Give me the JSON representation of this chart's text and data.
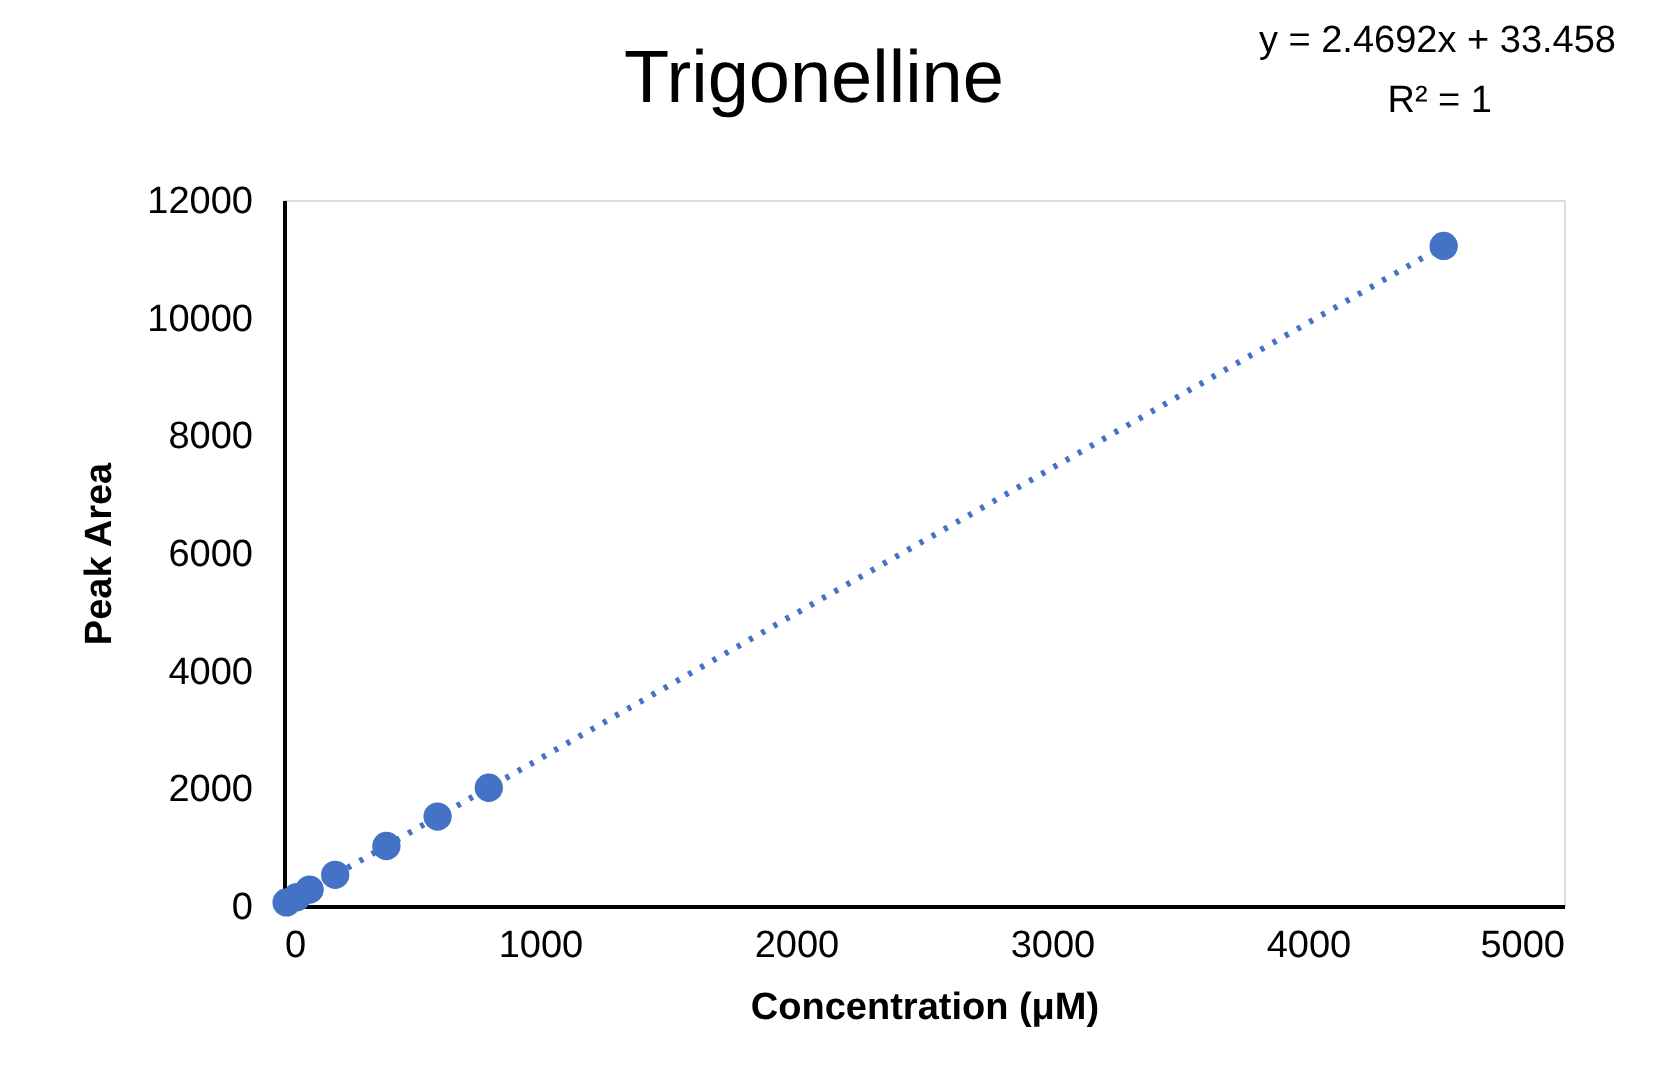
{
  "chart_data": {
    "type": "scatter",
    "title": "Trigonelline",
    "xlabel": "Concentration (μM)",
    "ylabel": "Peak Area",
    "annotations": [
      "y = 2.4692x + 33.458",
      "R² = 1"
    ],
    "series": [
      {
        "type": "line",
        "color": "#4472c4",
        "x": [
          10,
          4530
        ],
        "values": [
          60,
          11220
        ],
        "line_style": "dotted"
      },
      {
        "color": "#4472c4",
        "x": [
          10,
          50,
          100,
          200,
          400,
          600,
          800,
          4530
        ],
        "values": [
          60,
          150,
          280,
          530,
          1020,
          1520,
          2010,
          11220
        ],
        "marker": "circle"
      }
    ],
    "xlim": [
      0,
      5000
    ],
    "xticks": [
      0,
      1000,
      2000,
      3000,
      4000,
      5000
    ],
    "ylim": [
      0,
      12000
    ],
    "yticks": [
      0,
      2000,
      4000,
      6000,
      8000,
      10000,
      12000
    ],
    "grid": false
  }
}
